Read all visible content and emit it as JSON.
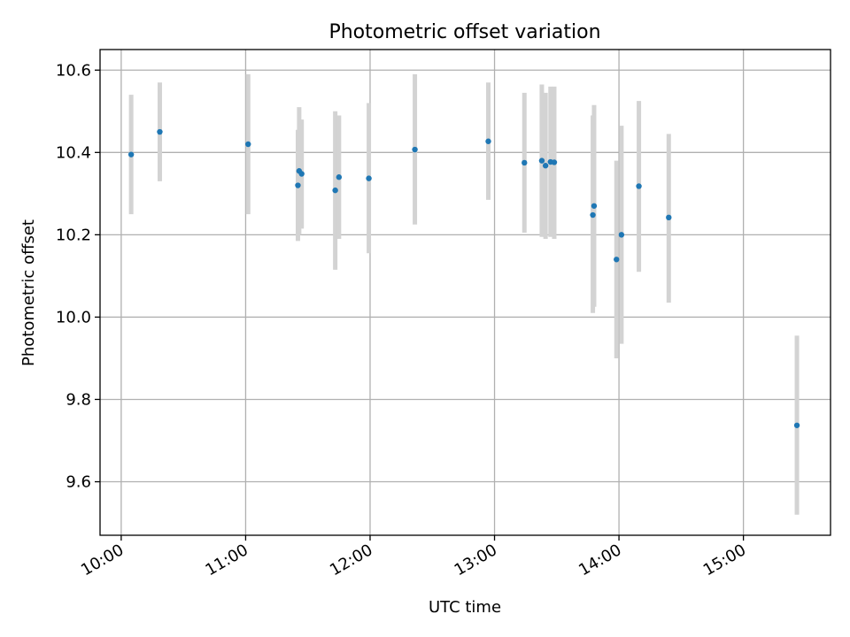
{
  "chart_data": {
    "type": "scatter",
    "title": "Photometric offset variation",
    "xlabel": "UTC time",
    "ylabel": "Photometric offset",
    "xlim_hours": [
      9.83,
      15.7
    ],
    "ylim": [
      9.47,
      10.65
    ],
    "x_ticks": [
      {
        "value": 10,
        "label": "10:00"
      },
      {
        "value": 11,
        "label": "11:00"
      },
      {
        "value": 12,
        "label": "12:00"
      },
      {
        "value": 13,
        "label": "13:00"
      },
      {
        "value": 14,
        "label": "14:00"
      },
      {
        "value": 15,
        "label": "15:00"
      }
    ],
    "y_ticks": [
      {
        "value": 9.6,
        "label": "9.6"
      },
      {
        "value": 9.8,
        "label": "9.8"
      },
      {
        "value": 10.0,
        "label": "10.0"
      },
      {
        "value": 10.2,
        "label": "10.2"
      },
      {
        "value": 10.4,
        "label": "10.4"
      },
      {
        "value": 10.6,
        "label": "10.6"
      }
    ],
    "grid": true,
    "marker_color": "#1f77b4",
    "errorbar_color": "#d3d3d3",
    "series": [
      {
        "name": "offset",
        "points": [
          {
            "x": 10.08,
            "y": 10.395,
            "ylo": 10.25,
            "yhi": 10.54
          },
          {
            "x": 10.31,
            "y": 10.45,
            "ylo": 10.33,
            "yhi": 10.57
          },
          {
            "x": 11.02,
            "y": 10.42,
            "ylo": 10.25,
            "yhi": 10.59
          },
          {
            "x": 11.42,
            "y": 10.32,
            "ylo": 10.185,
            "yhi": 10.455
          },
          {
            "x": 11.43,
            "y": 10.355,
            "ylo": 10.2,
            "yhi": 10.51
          },
          {
            "x": 11.45,
            "y": 10.348,
            "ylo": 10.215,
            "yhi": 10.48
          },
          {
            "x": 11.72,
            "y": 10.308,
            "ylo": 10.115,
            "yhi": 10.5
          },
          {
            "x": 11.75,
            "y": 10.34,
            "ylo": 10.19,
            "yhi": 10.49
          },
          {
            "x": 11.99,
            "y": 10.337,
            "ylo": 10.155,
            "yhi": 10.52
          },
          {
            "x": 12.36,
            "y": 10.407,
            "ylo": 10.225,
            "yhi": 10.59
          },
          {
            "x": 12.95,
            "y": 10.427,
            "ylo": 10.285,
            "yhi": 10.57
          },
          {
            "x": 13.24,
            "y": 10.375,
            "ylo": 10.205,
            "yhi": 10.545
          },
          {
            "x": 13.38,
            "y": 10.38,
            "ylo": 10.195,
            "yhi": 10.565
          },
          {
            "x": 13.41,
            "y": 10.368,
            "ylo": 10.19,
            "yhi": 10.545
          },
          {
            "x": 13.45,
            "y": 10.377,
            "ylo": 10.195,
            "yhi": 10.56
          },
          {
            "x": 13.48,
            "y": 10.376,
            "ylo": 10.19,
            "yhi": 10.56
          },
          {
            "x": 13.79,
            "y": 10.248,
            "ylo": 10.01,
            "yhi": 10.49
          },
          {
            "x": 13.8,
            "y": 10.27,
            "ylo": 10.025,
            "yhi": 10.515
          },
          {
            "x": 13.98,
            "y": 10.14,
            "ylo": 9.9,
            "yhi": 10.38
          },
          {
            "x": 14.02,
            "y": 10.2,
            "ylo": 9.935,
            "yhi": 10.465
          },
          {
            "x": 14.16,
            "y": 10.318,
            "ylo": 10.11,
            "yhi": 10.525
          },
          {
            "x": 14.4,
            "y": 10.242,
            "ylo": 10.035,
            "yhi": 10.445
          },
          {
            "x": 15.43,
            "y": 9.737,
            "ylo": 9.52,
            "yhi": 9.955
          }
        ]
      }
    ]
  }
}
